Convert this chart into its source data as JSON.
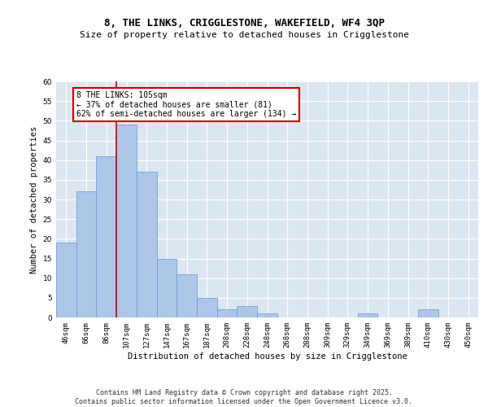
{
  "title1": "8, THE LINKS, CRIGGLESTONE, WAKEFIELD, WF4 3QP",
  "title2": "Size of property relative to detached houses in Crigglestone",
  "xlabel": "Distribution of detached houses by size in Crigglestone",
  "ylabel": "Number of detached properties",
  "bar_labels": [
    "46sqm",
    "66sqm",
    "86sqm",
    "107sqm",
    "127sqm",
    "147sqm",
    "167sqm",
    "187sqm",
    "208sqm",
    "228sqm",
    "248sqm",
    "268sqm",
    "288sqm",
    "309sqm",
    "329sqm",
    "349sqm",
    "369sqm",
    "389sqm",
    "410sqm",
    "430sqm",
    "450sqm"
  ],
  "bar_values": [
    19,
    32,
    41,
    49,
    37,
    15,
    11,
    5,
    2,
    3,
    1,
    0,
    0,
    0,
    0,
    1,
    0,
    0,
    2,
    0,
    0
  ],
  "bar_color": "#aec6e8",
  "bar_edge_color": "#5b9bd5",
  "background_color": "#dce6f0",
  "grid_color": "#ffffff",
  "red_line_x": 2.5,
  "annotation_text": "8 THE LINKS: 105sqm\n← 37% of detached houses are smaller (81)\n62% of semi-detached houses are larger (134) →",
  "annotation_box_color": "#ffffff",
  "annotation_box_edge": "#cc0000",
  "ylim": [
    0,
    60
  ],
  "yticks": [
    0,
    5,
    10,
    15,
    20,
    25,
    30,
    35,
    40,
    45,
    50,
    55,
    60
  ],
  "footer": "Contains HM Land Registry data © Crown copyright and database right 2025.\nContains public sector information licensed under the Open Government Licence v3.0.",
  "title_fontsize": 9,
  "subtitle_fontsize": 8,
  "axis_label_fontsize": 7.5,
  "tick_fontsize": 6.5,
  "annotation_fontsize": 7,
  "footer_fontsize": 6
}
